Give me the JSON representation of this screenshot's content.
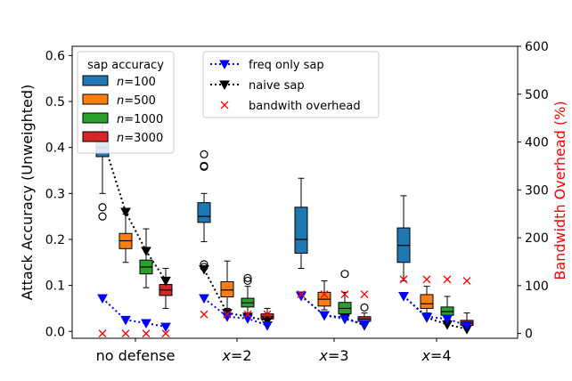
{
  "chart_data": {
    "type": "box",
    "xlabel": "",
    "ylabel": "Attack Accuracy (Unweighted)",
    "y2label": "Bandwidth Overhead (%)",
    "ylim": [
      -0.015,
      0.62
    ],
    "y2lim": [
      -10,
      600
    ],
    "yticks": [
      0.0,
      0.1,
      0.2,
      0.3,
      0.4,
      0.5,
      0.6
    ],
    "ytick_labels": [
      "0.0",
      "0.1",
      "0.2",
      "0.3",
      "0.4",
      "0.5",
      "0.6"
    ],
    "y2ticks": [
      0,
      100,
      200,
      300,
      400,
      500,
      600
    ],
    "y2tick_labels": [
      "0",
      "100",
      "200",
      "300",
      "400",
      "500",
      "600"
    ],
    "groups": [
      {
        "prefix": "",
        "label": "no defense",
        "suffix": ""
      },
      {
        "prefix": "x",
        "label": "x=2",
        "suffix": "=2"
      },
      {
        "prefix": "x",
        "label": "x=3",
        "suffix": "=3"
      },
      {
        "prefix": "x",
        "label": "x=4",
        "suffix": "=4"
      }
    ],
    "legend_box": {
      "title": "sap accuracy",
      "entries": [
        {
          "prefix": "n",
          "suffix": "=100",
          "color": "#1f77b4"
        },
        {
          "prefix": "n",
          "suffix": "=500",
          "color": "#ff7f0e"
        },
        {
          "prefix": "n",
          "suffix": "=1000",
          "color": "#2ca02c"
        },
        {
          "prefix": "n",
          "suffix": "=3000",
          "color": "#d62728"
        }
      ]
    },
    "legend_lines": [
      {
        "label": "freq only sap",
        "color": "#0000ff",
        "style": "dotted",
        "marker": "triangle-down"
      },
      {
        "label": "naive sap",
        "color": "#000000",
        "style": "dotted",
        "marker": "triangle-down"
      },
      {
        "label": "bandwith overhead",
        "color": "#ff0000",
        "style": "none",
        "marker": "x"
      }
    ],
    "box_series": [
      {
        "name": "n=100",
        "color": "#1f77b4",
        "boxes": [
          {
            "whislo": 0.3,
            "q1": 0.38,
            "med": 0.4,
            "q3": 0.43,
            "whishi": 0.47,
            "fliers": [
              0.27,
              0.25
            ]
          },
          {
            "whislo": 0.195,
            "q1": 0.237,
            "med": 0.25,
            "q3": 0.28,
            "whishi": 0.3,
            "fliers": [
              0.385,
              0.36,
              0.358,
              0.146,
              0.14
            ]
          },
          {
            "whislo": 0.137,
            "q1": 0.17,
            "med": 0.2,
            "q3": 0.27,
            "whishi": 0.333,
            "fliers": []
          },
          {
            "whislo": 0.11,
            "q1": 0.15,
            "med": 0.187,
            "q3": 0.225,
            "whishi": 0.295,
            "fliers": []
          }
        ]
      },
      {
        "name": "n=500",
        "color": "#ff7f0e",
        "boxes": [
          {
            "whislo": 0.15,
            "q1": 0.18,
            "med": 0.197,
            "q3": 0.213,
            "whishi": 0.255,
            "fliers": []
          },
          {
            "whislo": 0.05,
            "q1": 0.075,
            "med": 0.09,
            "q3": 0.108,
            "whishi": 0.153,
            "fliers": []
          },
          {
            "whislo": 0.047,
            "q1": 0.055,
            "med": 0.07,
            "q3": 0.085,
            "whishi": 0.11,
            "fliers": []
          },
          {
            "whislo": 0.04,
            "q1": 0.05,
            "med": 0.06,
            "q3": 0.08,
            "whishi": 0.098,
            "fliers": []
          }
        ]
      },
      {
        "name": "n=1000",
        "color": "#2ca02c",
        "boxes": [
          {
            "whislo": 0.095,
            "q1": 0.125,
            "med": 0.14,
            "q3": 0.155,
            "whishi": 0.223,
            "fliers": []
          },
          {
            "whislo": 0.03,
            "q1": 0.053,
            "med": 0.062,
            "q3": 0.072,
            "whishi": 0.098,
            "fliers": [
              0.116,
              0.11
            ]
          },
          {
            "whislo": 0.03,
            "q1": 0.038,
            "med": 0.05,
            "q3": 0.063,
            "whishi": 0.085,
            "fliers": [
              0.125
            ]
          },
          {
            "whislo": 0.025,
            "q1": 0.035,
            "med": 0.043,
            "q3": 0.053,
            "whishi": 0.076,
            "fliers": []
          }
        ]
      },
      {
        "name": "n=3000",
        "color": "#d62728",
        "boxes": [
          {
            "whislo": 0.05,
            "q1": 0.078,
            "med": 0.09,
            "q3": 0.102,
            "whishi": 0.137,
            "fliers": []
          },
          {
            "whislo": 0.02,
            "q1": 0.027,
            "med": 0.032,
            "q3": 0.038,
            "whishi": 0.05,
            "fliers": []
          },
          {
            "whislo": 0.018,
            "q1": 0.022,
            "med": 0.027,
            "q3": 0.032,
            "whishi": 0.04,
            "fliers": [
              0.052
            ]
          },
          {
            "whislo": 0.005,
            "q1": 0.013,
            "med": 0.018,
            "q3": 0.024,
            "whishi": 0.04,
            "fliers": []
          }
        ]
      }
    ],
    "line_series": [
      {
        "name": "freq only sap",
        "axis": "left",
        "color": "#0000ff",
        "y": [
          [
            0.072,
            0.025,
            0.018,
            0.01
          ],
          [
            0.072,
            0.032,
            0.028,
            0.013
          ],
          [
            0.077,
            0.035,
            0.027,
            0.015
          ],
          [
            0.077,
            0.032,
            0.027,
            0.013
          ]
        ]
      },
      {
        "name": "naive sap",
        "axis": "left",
        "color": "#000000",
        "y": [
          [
            0.42,
            0.26,
            0.175,
            0.11
          ],
          [
            0.135,
            0.04,
            0.032,
            0.023
          ],
          [
            0.078,
            0.035,
            0.03,
            0.013
          ],
          [
            0.077,
            0.03,
            0.015,
            0.005
          ]
        ]
      },
      {
        "name": "bandwith overhead",
        "axis": "right",
        "color": "#ff0000",
        "y": [
          [
            0,
            0,
            0,
            0
          ],
          [
            40,
            40,
            40,
            40
          ],
          [
            82,
            82,
            82,
            82
          ],
          [
            113,
            113,
            113,
            110
          ]
        ]
      }
    ]
  }
}
